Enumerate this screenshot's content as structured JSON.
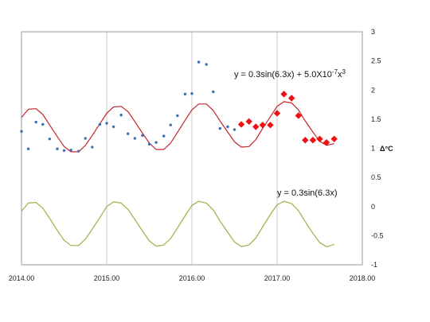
{
  "chart_data": {
    "type": "scatter",
    "title": "",
    "xlabel": "",
    "ylabel": "Δ°C",
    "xlim": [
      2014.0,
      2018.0
    ],
    "ylim": [
      -1,
      3
    ],
    "x_ticks": [
      2014.0,
      2015.0,
      2016.0,
      2017.0,
      2018.0
    ],
    "x_tick_labels": [
      "2014.00",
      "2015.00",
      "2016.00",
      "2017.00",
      "2018.00"
    ],
    "y_ticks": [
      -1,
      -0.5,
      0,
      0.5,
      1,
      1.5,
      2,
      2.5,
      3
    ],
    "y_tick_labels": [
      "-1",
      "-0.5",
      "0",
      "0.5",
      "1",
      "1.5",
      "2",
      "2.5",
      "3"
    ],
    "grid": "vertical",
    "annotations": {
      "fit_equation_prefix": "y = 0.3sin(6.3x) + 5.0X10",
      "fit_equation_exp1": "-7",
      "fit_equation_mid": "x",
      "fit_equation_exp2": "3",
      "sine_equation": "y = 0.3sin(6.3x)"
    },
    "series": [
      {
        "kind": "scatter",
        "marker": "dot",
        "color": "#3a6fb5",
        "x": [
          2014.0,
          2014.08,
          2014.17,
          2014.25,
          2014.33,
          2014.42,
          2014.5,
          2014.58,
          2014.67,
          2014.75,
          2014.83,
          2014.92,
          2015.0,
          2015.08,
          2015.17,
          2015.25,
          2015.33,
          2015.42,
          2015.5,
          2015.58,
          2015.67,
          2015.75,
          2015.83,
          2015.92,
          2016.0,
          2016.08,
          2016.17,
          2016.25,
          2016.33,
          2016.42,
          2016.5
        ],
        "y": [
          1.29,
          0.99,
          1.45,
          1.41,
          1.16,
          0.99,
          0.96,
          0.97,
          0.95,
          1.17,
          1.02,
          1.41,
          1.43,
          1.37,
          1.57,
          1.25,
          1.17,
          1.22,
          1.07,
          1.1,
          1.21,
          1.4,
          1.56,
          1.93,
          1.94,
          2.48,
          2.44,
          1.97,
          1.34,
          1.37,
          1.32
        ]
      },
      {
        "kind": "scatter",
        "marker": "diamond",
        "color": "#ee1111",
        "x": [
          2016.58,
          2016.67,
          2016.75,
          2016.83,
          2016.92,
          2017.0,
          2017.08,
          2017.17,
          2017.25,
          2017.33,
          2017.42,
          2017.5,
          2017.58,
          2017.67
        ],
        "y": [
          1.41,
          1.46,
          1.37,
          1.4,
          1.4,
          1.6,
          1.93,
          1.86,
          1.56,
          1.14,
          1.14,
          1.16,
          1.1,
          1.16
        ]
      },
      {
        "kind": "line",
        "color": "#c2272d",
        "x": [
          2014.0,
          2014.08,
          2014.17,
          2014.25,
          2014.33,
          2014.42,
          2014.5,
          2014.58,
          2014.67,
          2014.75,
          2014.83,
          2014.92,
          2015.0,
          2015.08,
          2015.17,
          2015.25,
          2015.33,
          2015.42,
          2015.5,
          2015.58,
          2015.67,
          2015.75,
          2015.83,
          2015.92,
          2016.0,
          2016.08,
          2016.17,
          2016.25,
          2016.33,
          2016.42,
          2016.5,
          2016.58,
          2016.67,
          2016.75,
          2016.83,
          2016.92,
          2017.0,
          2017.08,
          2017.17,
          2017.25,
          2017.33,
          2017.42,
          2017.5,
          2017.58,
          2017.67
        ],
        "y": [
          1.53,
          1.67,
          1.68,
          1.58,
          1.4,
          1.2,
          1.03,
          0.94,
          0.94,
          1.05,
          1.22,
          1.42,
          1.6,
          1.71,
          1.72,
          1.63,
          1.46,
          1.26,
          1.09,
          0.98,
          0.98,
          1.09,
          1.27,
          1.48,
          1.66,
          1.76,
          1.76,
          1.65,
          1.47,
          1.28,
          1.11,
          1.02,
          1.03,
          1.15,
          1.34,
          1.54,
          1.72,
          1.8,
          1.78,
          1.66,
          1.47,
          1.28,
          1.12,
          1.05,
          1.08
        ]
      },
      {
        "kind": "line",
        "color": "#9bb04a",
        "x": [
          2014.0,
          2014.08,
          2014.17,
          2014.25,
          2014.33,
          2014.42,
          2014.5,
          2014.58,
          2014.67,
          2014.75,
          2014.83,
          2014.92,
          2015.0,
          2015.08,
          2015.17,
          2015.25,
          2015.33,
          2015.42,
          2015.5,
          2015.58,
          2015.67,
          2015.75,
          2015.83,
          2015.92,
          2016.0,
          2016.08,
          2016.17,
          2016.25,
          2016.33,
          2016.42,
          2016.5,
          2016.58,
          2016.67,
          2016.75,
          2016.83,
          2016.92,
          2017.0,
          2017.08,
          2017.17,
          2017.25,
          2017.33,
          2017.42,
          2017.5,
          2017.58,
          2017.67
        ],
        "y": [
          -0.08,
          0.06,
          0.07,
          -0.03,
          -0.2,
          -0.41,
          -0.58,
          -0.67,
          -0.67,
          -0.56,
          -0.39,
          -0.19,
          0.0,
          0.08,
          0.06,
          -0.05,
          -0.22,
          -0.42,
          -0.59,
          -0.68,
          -0.66,
          -0.55,
          -0.37,
          -0.16,
          0.02,
          0.09,
          0.06,
          -0.06,
          -0.25,
          -0.44,
          -0.61,
          -0.69,
          -0.66,
          -0.54,
          -0.35,
          -0.14,
          0.03,
          0.09,
          0.05,
          -0.07,
          -0.26,
          -0.46,
          -0.62,
          -0.69,
          -0.65
        ]
      }
    ]
  }
}
